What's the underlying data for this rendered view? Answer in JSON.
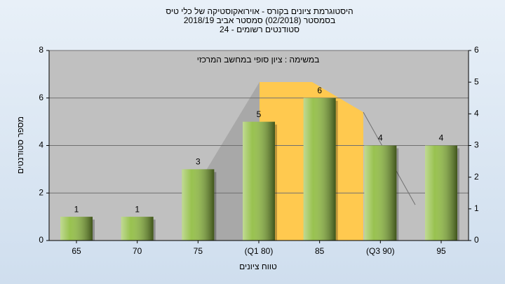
{
  "chart_data": {
    "type": "bar",
    "title": "היסטוגרמת ציונים בקורס - אוירואקוסטיקה של כלי טיס",
    "subtitle": "בסמסטר  (02/2018)  סמסטר אביב 2018/19",
    "subtitle2": "סטודנטים רשומים - 24",
    "annotation": "במשימה : ציון סופי במחשב המרכזי",
    "xlabel": "טווח ציונים",
    "ylabel": "מספר סטודנטים",
    "categories": [
      "65",
      "70",
      "75",
      "(Q1 80)",
      "85",
      "(Q3 90)",
      "95"
    ],
    "values": [
      1,
      1,
      3,
      5,
      6,
      4,
      4
    ],
    "color": "#8dbb3c",
    "ylim": [
      0,
      8
    ],
    "yticks": [
      0,
      2,
      4,
      6,
      8
    ],
    "y2lim": [
      0,
      6
    ],
    "y2ticks": [
      0,
      1,
      2,
      3,
      4,
      5,
      6
    ],
    "grid": true
  }
}
